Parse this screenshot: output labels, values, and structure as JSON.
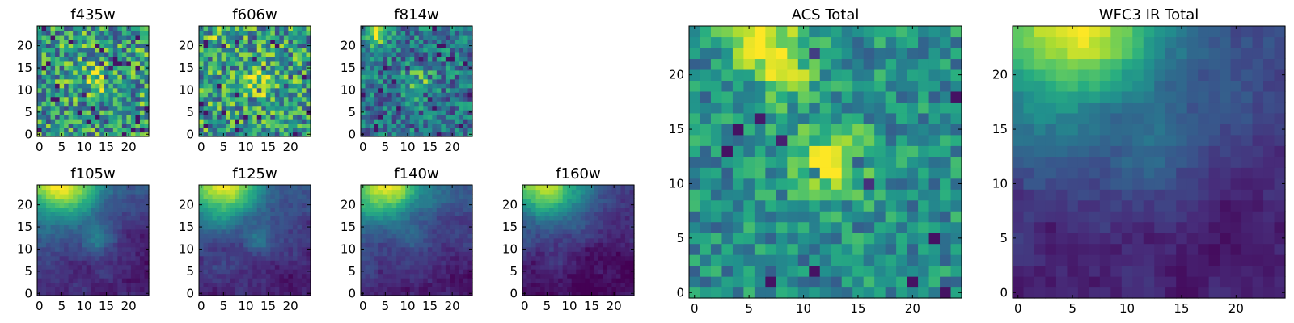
{
  "chart_data": [
    {
      "type": "heatmap",
      "title": "f435w",
      "xticks": [
        "0",
        "5",
        "10",
        "15",
        "20"
      ],
      "yticks": [
        "0",
        "5",
        "10",
        "15",
        "20"
      ],
      "xlim": [
        -0.5,
        24.5
      ],
      "ylim": [
        -0.5,
        24.5
      ],
      "grid": false,
      "colormap": "viridis",
      "style": "noise",
      "hotspots": [
        {
          "x": 12.5,
          "y": 12.5,
          "level": 0.3
        }
      ]
    },
    {
      "type": "heatmap",
      "title": "f606w",
      "xticks": [
        "0",
        "5",
        "10",
        "15",
        "20"
      ],
      "yticks": [
        "0",
        "5",
        "10",
        "15",
        "20"
      ],
      "xlim": [
        -0.5,
        24.5
      ],
      "ylim": [
        -0.5,
        24.5
      ],
      "grid": false,
      "colormap": "viridis",
      "style": "noise",
      "hotspots": [
        {
          "x": 12.5,
          "y": 12,
          "level": 0.35
        },
        {
          "x": 5,
          "y": 23,
          "level": 0.15
        }
      ]
    },
    {
      "type": "heatmap",
      "title": "f814w",
      "xticks": [
        "0",
        "5",
        "10",
        "15",
        "20"
      ],
      "yticks": [
        "0",
        "5",
        "10",
        "15",
        "20"
      ],
      "xlim": [
        -0.5,
        24.5
      ],
      "ylim": [
        -0.5,
        24.5
      ],
      "grid": false,
      "colormap": "viridis",
      "style": "noise-dim",
      "hotspots": [
        {
          "x": 12.5,
          "y": 12,
          "level": 0.35
        },
        {
          "x": 3,
          "y": 23,
          "level": 0.45
        }
      ]
    },
    {
      "type": "heatmap",
      "title": "f105w",
      "xticks": [
        "0",
        "5",
        "10",
        "15",
        "20"
      ],
      "yticks": [
        "0",
        "5",
        "10",
        "15",
        "20"
      ],
      "xlim": [
        -0.5,
        24.5
      ],
      "ylim": [
        -0.5,
        24.5
      ],
      "grid": false,
      "colormap": "viridis",
      "style": "smooth",
      "hotspots": [
        {
          "x": 12.5,
          "y": 12,
          "level": 0.25
        }
      ]
    },
    {
      "type": "heatmap",
      "title": "f125w",
      "xticks": [
        "0",
        "5",
        "10",
        "15",
        "20"
      ],
      "yticks": [
        "0",
        "5",
        "10",
        "15",
        "20"
      ],
      "xlim": [
        -0.5,
        24.5
      ],
      "ylim": [
        -0.5,
        24.5
      ],
      "grid": false,
      "colormap": "viridis",
      "style": "smooth",
      "hotspots": [
        {
          "x": 12.5,
          "y": 12,
          "level": 0.15
        }
      ]
    },
    {
      "type": "heatmap",
      "title": "f140w",
      "xticks": [
        "0",
        "5",
        "10",
        "15",
        "20"
      ],
      "yticks": [
        "0",
        "5",
        "10",
        "15",
        "20"
      ],
      "xlim": [
        -0.5,
        24.5
      ],
      "ylim": [
        -0.5,
        24.5
      ],
      "grid": false,
      "colormap": "viridis",
      "style": "smooth",
      "hotspots": [
        {
          "x": 12.5,
          "y": 12,
          "level": 0.1
        }
      ]
    },
    {
      "type": "heatmap",
      "title": "f160w",
      "xticks": [
        "0",
        "5",
        "10",
        "15",
        "20"
      ],
      "yticks": [
        "0",
        "5",
        "10",
        "15",
        "20"
      ],
      "xlim": [
        -0.5,
        24.5
      ],
      "ylim": [
        -0.5,
        24.5
      ],
      "grid": false,
      "colormap": "viridis",
      "style": "smooth-dark",
      "hotspots": []
    },
    {
      "type": "heatmap",
      "title": "ACS Total",
      "xticks": [
        "0",
        "5",
        "10",
        "15",
        "20"
      ],
      "yticks": [
        "0",
        "5",
        "10",
        "15",
        "20"
      ],
      "xlim": [
        -0.5,
        24.5
      ],
      "ylim": [
        -0.5,
        24.5
      ],
      "grid": false,
      "colormap": "viridis",
      "style": "noise-mid",
      "hotspots": [
        {
          "x": 12.5,
          "y": 12,
          "level": 0.5
        },
        {
          "x": 6,
          "y": 23.5,
          "level": 0.5
        },
        {
          "x": 9,
          "y": 20,
          "level": 0.25
        }
      ]
    },
    {
      "type": "heatmap",
      "title": "WFC3 IR Total",
      "xticks": [
        "0",
        "5",
        "10",
        "15",
        "20"
      ],
      "yticks": [
        "0",
        "5",
        "10",
        "15",
        "20"
      ],
      "xlim": [
        -0.5,
        24.5
      ],
      "ylim": [
        -0.5,
        24.5
      ],
      "grid": false,
      "colormap": "viridis",
      "style": "smooth",
      "hotspots": [
        {
          "x": 12.5,
          "y": 12,
          "level": 0.12
        }
      ]
    }
  ]
}
